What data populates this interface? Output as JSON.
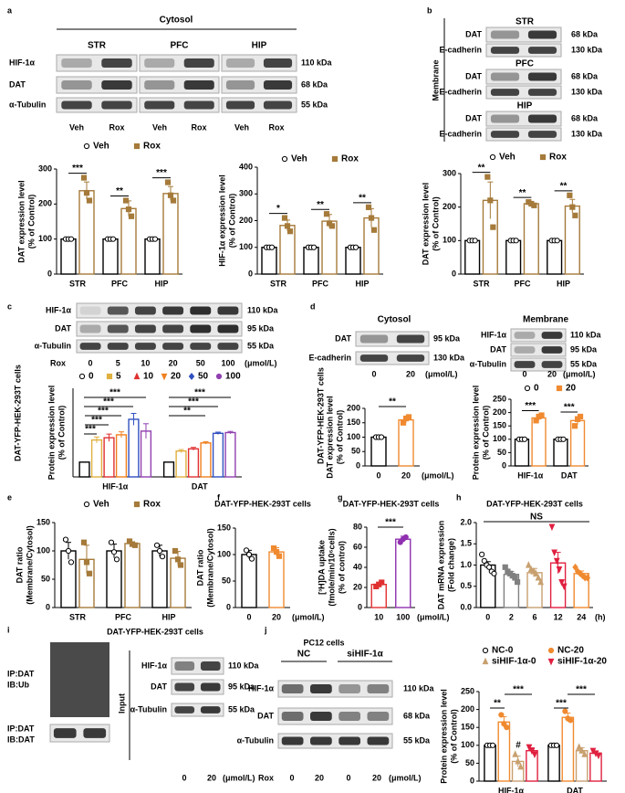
{
  "panel_labels": [
    "a",
    "b",
    "c",
    "d",
    "e",
    "f",
    "g",
    "h",
    "i",
    "j"
  ],
  "blots": {
    "a": {
      "title": "Cytosol",
      "groups": [
        "STR",
        "PFC",
        "HIP"
      ],
      "rows": [
        "HIF-1α",
        "DAT",
        "α-Tubulin"
      ],
      "sizes": [
        "110 kDa",
        "68 kDa",
        "55 kDa"
      ],
      "lanes": [
        "Veh",
        "Rox"
      ]
    },
    "b": {
      "side": "Membrane",
      "groups": [
        "STR",
        "PFC",
        "HIP"
      ],
      "rows": [
        "DAT",
        "E-cadherin"
      ],
      "sizes": [
        "68 kDa",
        "130 kDa"
      ]
    },
    "c": {
      "side": "DAT-YFP-HEK-293T cells",
      "rows": [
        "HIF-1α",
        "DAT",
        "α-Tubulin"
      ],
      "sizes": [
        "110 kDa",
        "95 kDa",
        "55 kDa"
      ],
      "lane_label": "Rox",
      "lanes": [
        "0",
        "5",
        "10",
        "20",
        "50",
        "100"
      ],
      "unit": "(μmol/L)"
    },
    "d": {
      "side": "DAT-YFP-HEK-293T cells",
      "left": {
        "title": "Cytosol",
        "rows": [
          "DAT",
          "E-cadherin"
        ],
        "sizes": [
          "95 kDa",
          "130 kDa"
        ],
        "lanes": [
          "0",
          "20"
        ],
        "unit": "(μmol/L)"
      },
      "right": {
        "title": "Membrane",
        "rows": [
          "HIF-1α",
          "DAT",
          "α-Tubulin"
        ],
        "sizes": [
          "110 kDa",
          "95 kDa",
          "55 kDa"
        ],
        "lanes": [
          "0",
          "20"
        ],
        "unit": "(μmol/L)"
      }
    },
    "i": {
      "title": "DAT-YFP-HEK-293T cells",
      "ip_rows": [
        [
          "IP:DAT",
          "IB:Ub"
        ],
        [
          "IP:DAT",
          "IB:DAT"
        ]
      ],
      "input": "Input",
      "rows": [
        "HIF-1α",
        "DAT",
        "α-Tubulin"
      ],
      "sizes": [
        "110 kDa",
        "95 kDa",
        "55 kDa"
      ],
      "lanes": [
        "0",
        "20"
      ],
      "unit": "(μmol/L)"
    },
    "j": {
      "title": "PC12 cells",
      "groups": [
        "NC",
        "siHIF-1α"
      ],
      "rows": [
        "HIF-1α",
        "DAT",
        "α-Tubulin"
      ],
      "sizes": [
        "110 kDa",
        "68 kDa",
        "55 kDa"
      ],
      "lane_label": "Rox",
      "lanes": [
        "0",
        "20",
        "0",
        "20"
      ],
      "unit": "(μmol/L)"
    }
  },
  "chart_data": [
    {
      "type": "bar",
      "ylabel": [
        "DAT expression level",
        "(% of Control)"
      ],
      "ylim": [
        0,
        300
      ],
      "yticks": [
        0,
        100,
        200,
        300
      ],
      "categories": [
        "STR",
        "PFC",
        "HIP"
      ],
      "legend": "top",
      "series": [
        {
          "name": "Veh",
          "color": "#000000",
          "marker": "circle-open",
          "values": [
            100,
            100,
            100
          ],
          "points": [
            [
              100,
              100,
              100
            ],
            [
              100,
              100,
              100
            ],
            [
              100,
              100,
              100
            ]
          ]
        },
        {
          "name": "Rox",
          "color": "#a57a3a",
          "marker": "square",
          "values": [
            238,
            187,
            230
          ],
          "errors": [
            25,
            22,
            20
          ],
          "points": [
            [
              275,
              232,
              210
            ],
            [
              210,
              185,
              165
            ],
            [
              262,
              225,
              210
            ]
          ]
        }
      ],
      "annotations": [
        "***",
        "**",
        "***"
      ]
    },
    {
      "type": "bar",
      "ylabel": [
        "HIF-1α expression level",
        "(% of Control)"
      ],
      "ylim": [
        0,
        400
      ],
      "yticks": [
        0,
        100,
        200,
        300,
        400
      ],
      "categories": [
        "STR",
        "PFC",
        "HIP"
      ],
      "legend": "top",
      "series": [
        {
          "name": "Veh",
          "color": "#000000",
          "marker": "circle-open",
          "values": [
            100,
            100,
            100
          ],
          "points": [
            [
              100,
              100,
              100
            ],
            [
              100,
              100,
              100
            ],
            [
              100,
              100,
              100
            ]
          ]
        },
        {
          "name": "Rox",
          "color": "#a57a3a",
          "marker": "square",
          "values": [
            182,
            198,
            210
          ],
          "errors": [
            20,
            25,
            35
          ],
          "points": [
            [
              210,
              180,
              160
            ],
            [
              225,
              190,
              180
            ],
            [
              250,
              210,
              165
            ]
          ]
        }
      ],
      "annotations": [
        "*",
        "**",
        "**"
      ]
    },
    {
      "type": "bar",
      "ylabel": [
        "DAT expression level",
        "(% of Control)"
      ],
      "ylim": [
        0,
        300
      ],
      "yticks": [
        0,
        100,
        200,
        300
      ],
      "categories": [
        "STR",
        "PFC",
        "HIP"
      ],
      "legend": "top",
      "series": [
        {
          "name": "Veh",
          "color": "#000000",
          "marker": "circle-open",
          "values": [
            100,
            100,
            100
          ],
          "points": [
            [
              100,
              100,
              100
            ],
            [
              100,
              100,
              100
            ],
            [
              100,
              100,
              100
            ]
          ]
        },
        {
          "name": "Rox",
          "color": "#a57a3a",
          "marker": "square",
          "values": [
            220,
            210,
            203
          ],
          "errors": [
            55,
            5,
            20
          ],
          "points": [
            [
              290,
              220,
              140
            ],
            [
              215,
              210,
              205
            ],
            [
              235,
              200,
              175
            ]
          ]
        }
      ],
      "annotations": [
        "**",
        "**",
        "**"
      ]
    },
    {
      "type": "bar",
      "ylabel": [
        "Protein expression level",
        "(% of Control)"
      ],
      "ylim": [
        0,
        600
      ],
      "categories": [
        "HIF-1α",
        "DAT"
      ],
      "legend": "top",
      "series": [
        {
          "name": "0",
          "color": "#000000",
          "marker": "circle-open",
          "values": [
            100,
            100
          ]
        },
        {
          "name": "5",
          "color": "#e0b040",
          "marker": "square",
          "values": [
            250,
            175
          ],
          "errors": [
            20,
            10
          ]
        },
        {
          "name": "10",
          "color": "#e03030",
          "marker": "triangle",
          "values": [
            265,
            190
          ],
          "errors": [
            25,
            10
          ]
        },
        {
          "name": "20",
          "color": "#f08020",
          "marker": "triangle-down",
          "values": [
            285,
            230
          ],
          "errors": [
            20,
            8
          ]
        },
        {
          "name": "50",
          "color": "#3050c0",
          "marker": "diamond",
          "values": [
            390,
            295
          ],
          "errors": [
            40,
            8
          ]
        },
        {
          "name": "100",
          "color": "#9040b0",
          "marker": "circle",
          "values": [
            310,
            300
          ],
          "errors": [
            50,
            8
          ]
        }
      ],
      "annotations": [
        "***",
        "***",
        "***",
        "***",
        "***",
        "***",
        "***",
        "**"
      ]
    },
    {
      "type": "bar",
      "ylabel": [
        "DAT expression level",
        "(% of Control)"
      ],
      "ylim": [
        0,
        200
      ],
      "yticks": [
        0,
        50,
        100,
        150,
        200
      ],
      "categories": [
        "0",
        "20"
      ],
      "xunit": "(μmol/L)",
      "series": [
        {
          "colors": [
            "#000000",
            "#f08a30"
          ],
          "markers": [
            "circle-open",
            "square"
          ],
          "values": [
            100,
            160
          ],
          "errors": [
            null,
            10
          ],
          "points": [
            [
              100,
              100,
              100
            ],
            [
              150,
              165,
              170
            ]
          ]
        }
      ],
      "annotations": [
        "**"
      ]
    },
    {
      "type": "bar",
      "ylabel": [
        "Protein expression level",
        "(% of Control)"
      ],
      "ylim": [
        0,
        250
      ],
      "yticks": [
        0,
        50,
        100,
        150,
        200,
        250
      ],
      "categories": [
        "HIF-1α",
        "DAT"
      ],
      "legend": "top",
      "series": [
        {
          "name": "0",
          "color": "#000000",
          "marker": "circle-open",
          "values": [
            100,
            100
          ],
          "points": [
            [
              100,
              100,
              100
            ],
            [
              100,
              100,
              100
            ]
          ]
        },
        {
          "name": "20",
          "color": "#f08a30",
          "marker": "square",
          "values": [
            180,
            170
          ],
          "errors": [
            10,
            15
          ],
          "points": [
            [
              170,
              185,
              190
            ],
            [
              150,
              175,
              185
            ]
          ]
        }
      ],
      "annotations": [
        "***",
        "***"
      ]
    },
    {
      "type": "bar",
      "ylabel": [
        "DAT ratio",
        "(Membrane/Cytosol)"
      ],
      "ylim": [
        0,
        150
      ],
      "yticks": [
        0,
        50,
        100,
        150
      ],
      "categories": [
        "STR",
        "PFC",
        "HIP"
      ],
      "legend": "top",
      "series": [
        {
          "name": "Veh",
          "color": "#000000",
          "marker": "circle-open",
          "values": [
            100,
            100,
            100
          ],
          "errors": [
            15,
            12,
            10
          ],
          "points": [
            [
              120,
              100,
              80
            ],
            [
              115,
              98,
              85
            ],
            [
              110,
              100,
              90
            ]
          ]
        },
        {
          "name": "Rox",
          "color": "#a57a3a",
          "marker": "square",
          "values": [
            85,
            113,
            87
          ],
          "errors": [
            25,
            3,
            12
          ],
          "points": [
            [
              115,
              80,
              60
            ],
            [
              117,
              112,
              110
            ],
            [
              100,
              85,
              75
            ]
          ]
        }
      ]
    },
    {
      "type": "bar",
      "title": "DAT-YFP-HEK-293T cells",
      "ylabel": [
        "DAT ratio",
        "(Membrane/Cytosol)"
      ],
      "ylim": [
        0,
        150
      ],
      "yticks": [
        0,
        50,
        100,
        150
      ],
      "categories": [
        "0",
        "20"
      ],
      "xunit": "(μmol/L)",
      "series": [
        {
          "colors": [
            "#000000",
            "#f08a30"
          ],
          "markers": [
            "circle-open",
            "square"
          ],
          "values": [
            100,
            105
          ],
          "errors": [
            8,
            8
          ],
          "points": [
            [
              108,
              100,
              92
            ],
            [
              112,
              105,
              97
            ]
          ]
        }
      ]
    },
    {
      "type": "bar",
      "title": "DAT-YFP-HEK-293T cells",
      "ylabel": [
        "[³H]DA uptake",
        "(fmole/min/10⁶cells)",
        "(% of control)"
      ],
      "ylim": [
        0,
        80
      ],
      "yticks": [
        0,
        20,
        40,
        60,
        80
      ],
      "categories": [
        "10",
        "100"
      ],
      "xunit": "(μmol/L)",
      "series": [
        {
          "colors": [
            "#e03030",
            "#9030b0"
          ],
          "markers": [
            "square",
            "circle"
          ],
          "values": [
            23,
            68
          ],
          "errors": [
            2,
            3
          ],
          "points": [
            [
              21,
              23,
              25
            ],
            [
              65,
              68,
              70
            ]
          ]
        }
      ],
      "annotations": [
        "***"
      ]
    },
    {
      "type": "bar",
      "title": "DAT-YFP-HEK-293T cells",
      "ylabel": [
        "DAT mRNA expression",
        "(Fold change)"
      ],
      "ylim": [
        0,
        2
      ],
      "yticks": [
        {
          "value": 0,
          "label": "0.0"
        },
        {
          "value": 0.5,
          "label": "0.5"
        },
        {
          "value": 1,
          "label": "1.0"
        },
        {
          "value": 1.5,
          "label": "1.5"
        },
        {
          "value": 2,
          "label": "2.0"
        }
      ],
      "categories": [
        "0",
        "2",
        "6",
        "12",
        "24"
      ],
      "xunit": "(h)",
      "series": [
        {
          "colors": [
            "#000000",
            "#808080",
            "#c8a070",
            "#e02040",
            "#f08a30"
          ],
          "markers": [
            "circle-open",
            "square",
            "triangle",
            "triangle-down",
            "diamond"
          ],
          "values": [
            1.0,
            0.78,
            0.82,
            1.05,
            0.8
          ],
          "errors": [
            0.08,
            0.07,
            0.1,
            0.25,
            0.06
          ],
          "points": [
            [
              1.25,
              1.1,
              1.0,
              0.95,
              0.85,
              0.8
            ],
            [
              0.95,
              0.85,
              0.8,
              0.75,
              0.7,
              0.6
            ],
            [
              1.0,
              0.9,
              0.85,
              0.8,
              0.7,
              0.6
            ],
            [
              1.9,
              1.3,
              1.1,
              0.9,
              0.6,
              0.5
            ],
            [
              0.95,
              0.85,
              0.8,
              0.75,
              0.7,
              0.7
            ]
          ]
        }
      ],
      "annotations": [
        "NS"
      ]
    },
    {
      "type": "bar",
      "ylabel": [
        "Protein expression level",
        "(% of Control)"
      ],
      "ylim": [
        0,
        250
      ],
      "yticks": [
        0,
        50,
        100,
        150,
        200,
        250
      ],
      "categories": [
        "HIF-1α",
        "DAT"
      ],
      "legend": "top",
      "series": [
        {
          "name": "NC-0",
          "color": "#000000",
          "marker": "circle-open",
          "values": [
            100,
            100
          ],
          "points": [
            [
              100,
              100,
              100
            ],
            [
              100,
              100,
              100
            ]
          ]
        },
        {
          "name": "NC-20",
          "color": "#f08a30",
          "marker": "circle",
          "values": [
            165,
            178
          ],
          "errors": [
            15,
            12
          ],
          "points": [
            [
              185,
              160,
              150
            ],
            [
              195,
              175,
              170
            ]
          ]
        },
        {
          "name": "siHIF-1α-0",
          "color": "#c8a070",
          "marker": "triangle",
          "values": [
            55,
            85
          ],
          "errors": [
            15,
            8
          ],
          "points": [
            [
              75,
              55,
              40
            ],
            [
              95,
              85,
              75
            ]
          ]
        },
        {
          "name": "siHIF-1α-20",
          "color": "#e02040",
          "marker": "triangle-down",
          "values": [
            85,
            78
          ],
          "errors": [
            8,
            5
          ],
          "points": [
            [
              95,
              85,
              75
            ],
            [
              85,
              78,
              72
            ]
          ]
        }
      ],
      "annotations": [
        "**",
        "***",
        "#",
        "***",
        "***"
      ]
    }
  ]
}
